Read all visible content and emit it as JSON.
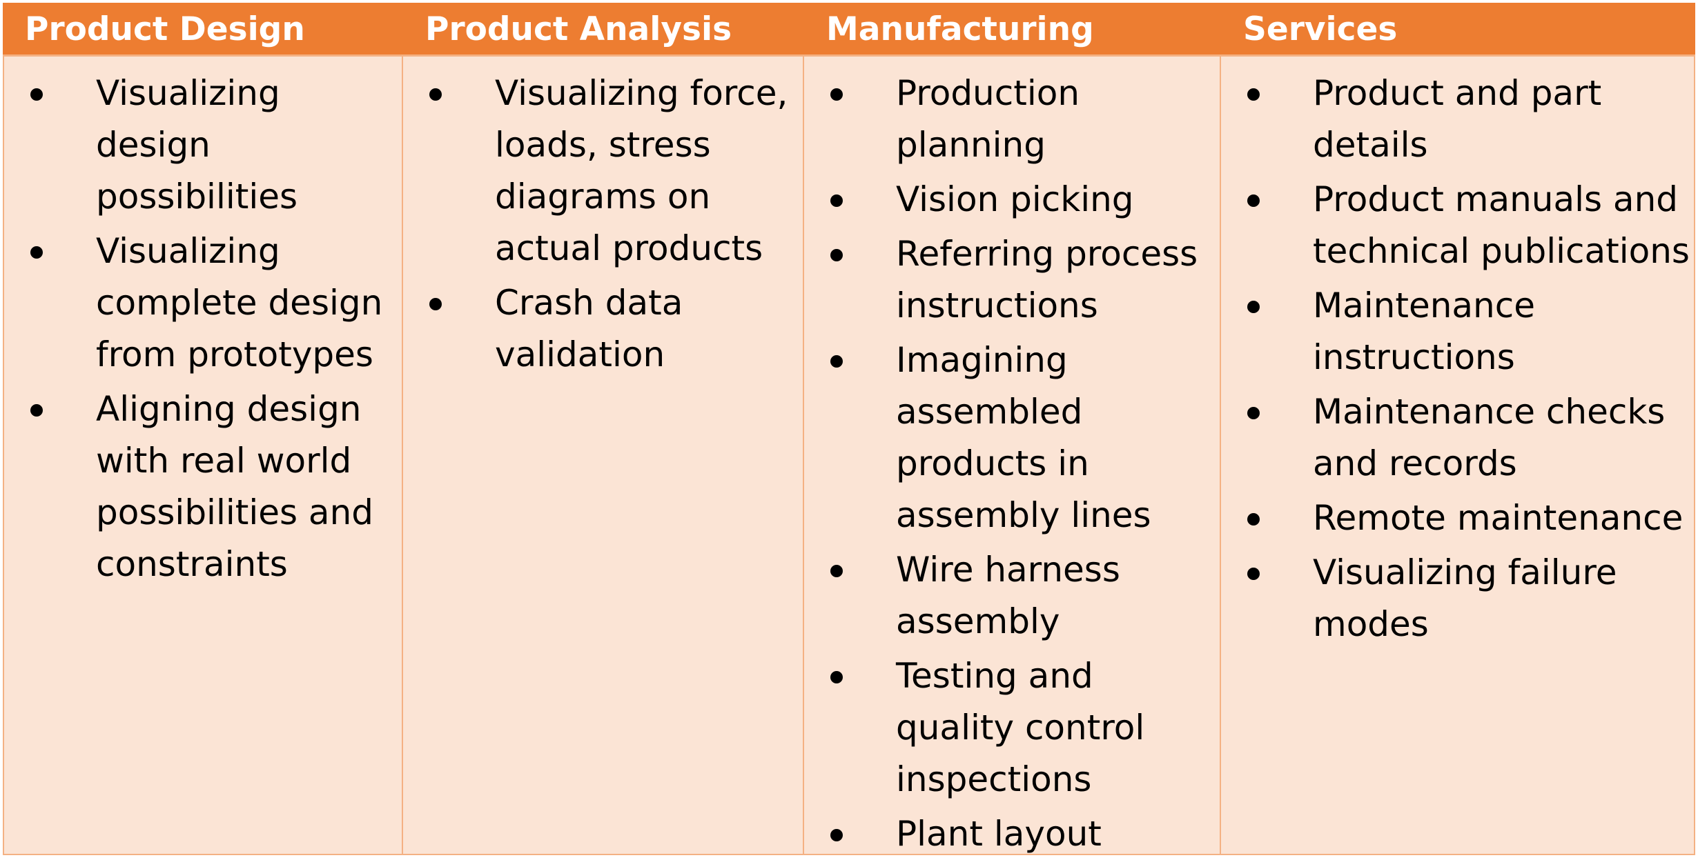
{
  "columns": [
    {
      "header": "Product Design",
      "items": [
        "Visualizing design possibilities",
        "Visualizing complete design from prototypes",
        "Aligning design with real world possibilities and constraints"
      ]
    },
    {
      "header": "Product Analysis",
      "items": [
        "Visualizing force, loads, stress diagrams on actual products",
        "Crash data validation"
      ]
    },
    {
      "header": "Manufacturing",
      "items": [
        "Production planning",
        "Vision picking",
        "Referring process instructions",
        "Imagining assembled products in assembly lines",
        "Wire harness assembly",
        "Testing and quality control inspections",
        "Plant layout"
      ]
    },
    {
      "header": "Services",
      "items": [
        "Product and part details",
        "Product manuals and technical publications",
        "Maintenance instructions",
        "Maintenance checks and records",
        "Remote maintenance",
        "Visualizing failure modes"
      ]
    }
  ],
  "colors": {
    "header_bg": "#ED7D31",
    "header_text": "#FFFFFF",
    "body_bg": "#FBE4D5",
    "border": "#F4B183"
  }
}
